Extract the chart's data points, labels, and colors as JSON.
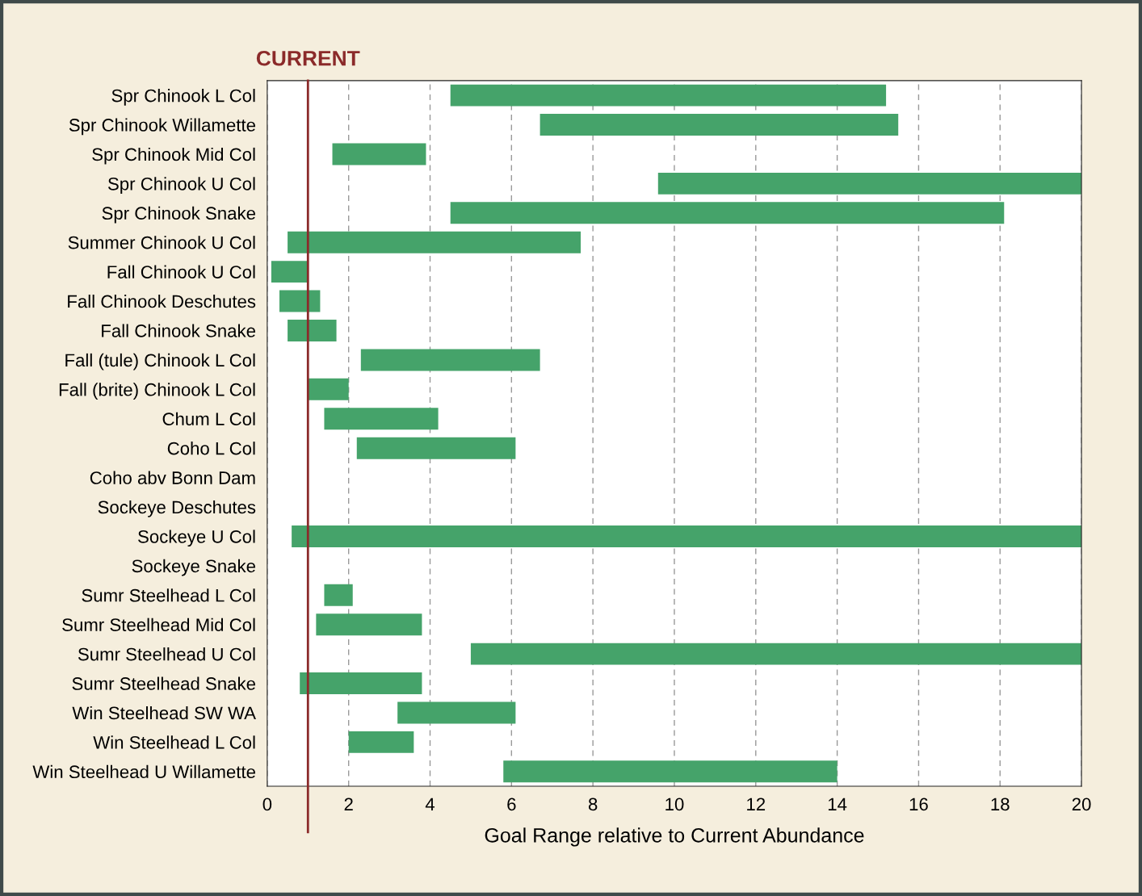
{
  "chart_data": {
    "type": "bar",
    "orientation": "horizontal",
    "xlabel": "Goal Range relative to Current Abundance",
    "categories": [
      "Spr Chinook L Col",
      "Spr Chinook Willamette",
      "Spr Chinook Mid Col",
      "Spr Chinook U Col",
      "Spr Chinook Snake",
      "Summer Chinook U Col",
      "Fall Chinook U Col",
      "Fall Chinook Deschutes",
      "Fall Chinook Snake",
      "Fall (tule) Chinook L Col",
      "Fall (brite) Chinook L Col",
      "Chum L Col",
      "Coho L Col",
      "Coho abv Bonn Dam",
      "Sockeye Deschutes",
      "Sockeye U Col",
      "Sockeye Snake",
      "Sumr Steelhead L Col",
      "Sumr Steelhead Mid Col",
      "Sumr Steelhead U Col",
      "Sumr Steelhead Snake",
      "Win Steelhead SW WA",
      "Win Steelhead L Col",
      "Win Steelhead U Willamette"
    ],
    "base": [
      4.5,
      6.7,
      1.6,
      9.6,
      4.5,
      0.5,
      0.1,
      0.3,
      0.5,
      2.3,
      1.0,
      1.4,
      2.2,
      null,
      null,
      0.6,
      null,
      1.4,
      1.2,
      5.0,
      0.8,
      3.2,
      2.0,
      5.8
    ],
    "values": [
      10.7,
      8.8,
      2.3,
      10.4,
      13.6,
      7.2,
      0.9,
      1.0,
      1.2,
      4.4,
      1.0,
      2.8,
      3.9,
      null,
      null,
      19.4,
      null,
      0.7,
      2.6,
      15.0,
      3.0,
      2.9,
      1.6,
      8.2
    ],
    "color": "#45a36a",
    "xlim": [
      0,
      20
    ],
    "xticks": [
      0,
      2,
      4,
      6,
      8,
      10,
      12,
      14,
      16,
      18,
      20
    ],
    "grid": "x",
    "ref_lines": [
      {
        "axis": "x",
        "value": 1,
        "label": "CURRENT",
        "color": "#8b2a2a"
      }
    ]
  }
}
